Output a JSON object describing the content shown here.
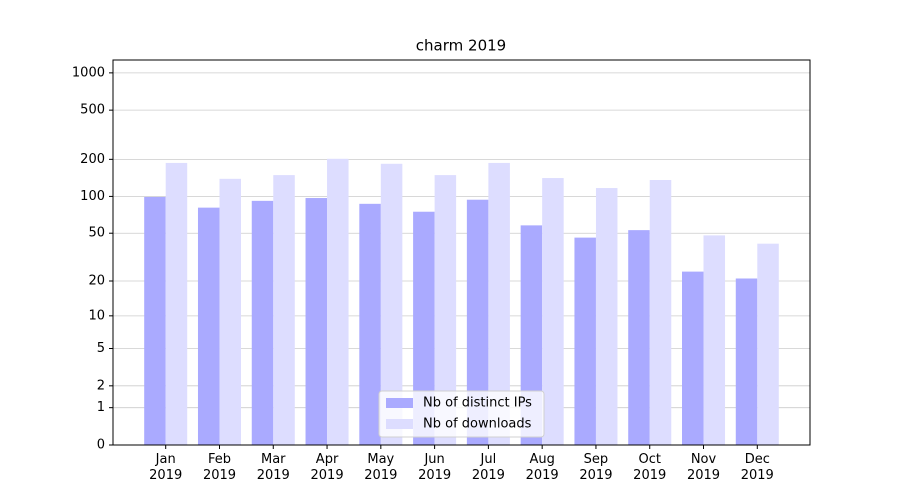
{
  "chart_data": {
    "type": "bar",
    "title": "charm 2019",
    "categories": [
      "Jan\n2019",
      "Feb\n2019",
      "Mar\n2019",
      "Apr\n2019",
      "May\n2019",
      "Jun\n2019",
      "Jul\n2019",
      "Aug\n2019",
      "Sep\n2019",
      "Oct\n2019",
      "Nov\n2019",
      "Dec\n2019"
    ],
    "series": [
      {
        "name": "Nb of distinct IPs",
        "color": "#aaaaff",
        "values": [
          99,
          81,
          92,
          97,
          87,
          75,
          94,
          58,
          46,
          53,
          24,
          21
        ]
      },
      {
        "name": "Nb of downloads",
        "color": "#ddddff",
        "values": [
          187,
          139,
          149,
          202,
          184,
          149,
          187,
          141,
          117,
          136,
          48,
          41
        ]
      }
    ],
    "yscale": "log1p",
    "ylim": [
      0,
      1270
    ],
    "yticks": [
      0,
      1,
      2,
      5,
      10,
      20,
      50,
      100,
      200,
      500,
      1000
    ],
    "grid": true,
    "legend": "lower center"
  }
}
